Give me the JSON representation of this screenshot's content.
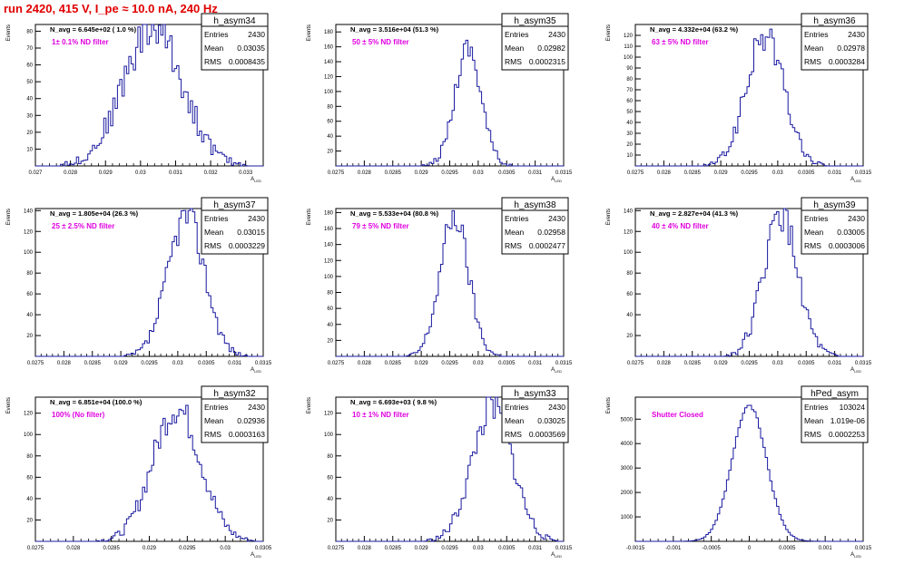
{
  "run_title": "run 2420,   415 V, I_pe ≈ 10.0 nA, 240 Hz",
  "colors": {
    "histogram": "#1a1aa0",
    "filter_label": "#e000e0",
    "run_title": "#e00000",
    "axis": "#000000",
    "background": "#ffffff"
  },
  "chart_data": [
    {
      "type": "bar",
      "name": "h_asym34",
      "stats": {
        "entries_label": "Entries",
        "entries": "2430",
        "mean_label": "Mean",
        "mean": "0.03035",
        "rms_label": "RMS",
        "rms": "0.0008435"
      },
      "navg": "N_avg = 6.645e+02 ( 1.0 %)",
      "filter": "1± 0.1% ND filter",
      "xlabel": "A_LED",
      "ylabel": "Events",
      "xlim": [
        0.027,
        0.0335
      ],
      "ylim": [
        0,
        84
      ],
      "xticks": [
        0.027,
        0.028,
        0.029,
        0.03,
        0.031,
        0.032,
        0.033
      ],
      "xtick_labels": [
        "0.027",
        "0.028",
        "0.029",
        "0.03",
        "0.031",
        "0.032",
        "0.033"
      ],
      "yticks": [
        10,
        20,
        30,
        40,
        50,
        60,
        70,
        80
      ],
      "peak": 82,
      "width_factor": 1.0,
      "seed": 34
    },
    {
      "type": "bar",
      "name": "h_asym35",
      "stats": {
        "entries_label": "Entries",
        "entries": "2430",
        "mean_label": "Mean",
        "mean": "0.02982",
        "rms_label": "RMS",
        "rms": "0.0002315"
      },
      "navg": "N_avg = 3.516e+04 (51.3 %)",
      "filter": "50 ± 5% ND filter",
      "xlabel": "A_LED",
      "ylabel": "Events",
      "xlim": [
        0.0275,
        0.0315
      ],
      "ylim": [
        0,
        190
      ],
      "xticks": [
        0.0275,
        0.028,
        0.0285,
        0.029,
        0.0295,
        0.03,
        0.0305,
        0.031,
        0.0315
      ],
      "xtick_labels": [
        "0.0275",
        "0.028",
        "0.0285",
        "0.029",
        "0.0295",
        "0.03",
        "0.0305",
        "0.031",
        "0.0315"
      ],
      "yticks": [
        20,
        40,
        60,
        80,
        100,
        120,
        140,
        160,
        180
      ],
      "peak": 160,
      "width_factor": 1.0,
      "seed": 35
    },
    {
      "type": "bar",
      "name": "h_asym36",
      "stats": {
        "entries_label": "Entries",
        "entries": "2430",
        "mean_label": "Mean",
        "mean": "0.02978",
        "rms_label": "RMS",
        "rms": "0.0003284"
      },
      "navg": "N_avg = 4.332e+04 (63.2 %)",
      "filter": "63 ± 5% ND filter",
      "xlabel": "A_LED",
      "ylabel": "Events",
      "xlim": [
        0.0275,
        0.0315
      ],
      "ylim": [
        0,
        130
      ],
      "xticks": [
        0.0275,
        0.028,
        0.0285,
        0.029,
        0.0295,
        0.03,
        0.0305,
        0.031,
        0.0315
      ],
      "xtick_labels": [
        "0.0275",
        "0.028",
        "0.0285",
        "0.029",
        "0.0295",
        "0.03",
        "0.0305",
        "0.031",
        "0.0315"
      ],
      "yticks": [
        10,
        20,
        30,
        40,
        50,
        60,
        70,
        80,
        90,
        100,
        110,
        120
      ],
      "peak": 120,
      "width_factor": 1.0,
      "seed": 36
    },
    {
      "type": "bar",
      "name": "h_asym37",
      "stats": {
        "entries_label": "Entries",
        "entries": "2430",
        "mean_label": "Mean",
        "mean": "0.03015",
        "rms_label": "RMS",
        "rms": "0.0003229"
      },
      "navg": "N_avg = 1.805e+04 (26.3 %)",
      "filter": "25 ± 2.5% ND filter",
      "xlabel": "A_LED",
      "ylabel": "Events",
      "xlim": [
        0.0275,
        0.0315
      ],
      "ylim": [
        0,
        142
      ],
      "xticks": [
        0.0275,
        0.028,
        0.0285,
        0.029,
        0.0295,
        0.03,
        0.0305,
        0.031,
        0.0315
      ],
      "xtick_labels": [
        "0.0275",
        "0.028",
        "0.0285",
        "0.029",
        "0.0295",
        "0.03",
        "0.0305",
        "0.031",
        "0.0315"
      ],
      "yticks": [
        20,
        40,
        60,
        80,
        100,
        120,
        140
      ],
      "peak": 135,
      "width_factor": 1.0,
      "seed": 37
    },
    {
      "type": "bar",
      "name": "h_asym38",
      "stats": {
        "entries_label": "Entries",
        "entries": "2430",
        "mean_label": "Mean",
        "mean": "0.02958",
        "rms_label": "RMS",
        "rms": "0.0002477"
      },
      "navg": "N_avg = 5.533e+04 (80.8 %)",
      "filter": "79 ± 5% ND filter",
      "xlabel": "A_LED",
      "ylabel": "Events",
      "xlim": [
        0.0275,
        0.0315
      ],
      "ylim": [
        0,
        185
      ],
      "xticks": [
        0.0275,
        0.028,
        0.0285,
        0.029,
        0.0295,
        0.03,
        0.0305,
        0.031,
        0.0315
      ],
      "xtick_labels": [
        "0.0275",
        "0.028",
        "0.0285",
        "0.029",
        "0.0295",
        "0.03",
        "0.0305",
        "0.031",
        "0.0315"
      ],
      "yticks": [
        20,
        40,
        60,
        80,
        100,
        120,
        140,
        160,
        180
      ],
      "peak": 175,
      "width_factor": 1.0,
      "seed": 38
    },
    {
      "type": "bar",
      "name": "h_asym39",
      "stats": {
        "entries_label": "Entries",
        "entries": "2430",
        "mean_label": "Mean",
        "mean": "0.03005",
        "rms_label": "RMS",
        "rms": "0.0003006"
      },
      "navg": "N_avg = 2.827e+04 (41.3 %)",
      "filter": "40 ± 4% ND filter",
      "xlabel": "A_LED",
      "ylabel": "Events",
      "xlim": [
        0.0275,
        0.0315
      ],
      "ylim": [
        0,
        142
      ],
      "xticks": [
        0.0275,
        0.028,
        0.0285,
        0.029,
        0.0295,
        0.03,
        0.0305,
        0.031,
        0.0315
      ],
      "xtick_labels": [
        "0.0275",
        "0.028",
        "0.0285",
        "0.029",
        "0.0295",
        "0.03",
        "0.0305",
        "0.031",
        "0.0315"
      ],
      "yticks": [
        20,
        40,
        60,
        80,
        100,
        120,
        140
      ],
      "peak": 135,
      "width_factor": 1.0,
      "seed": 39
    },
    {
      "type": "bar",
      "name": "h_asym32",
      "stats": {
        "entries_label": "Entries",
        "entries": "2430",
        "mean_label": "Mean",
        "mean": "0.02936",
        "rms_label": "RMS",
        "rms": "0.0003163"
      },
      "navg": "N_avg = 6.851e+04 (100.0 %)",
      "filter": "100% (No filter)",
      "xlabel": "A_LED",
      "ylabel": "Events",
      "xlim": [
        0.0275,
        0.0305
      ],
      "ylim": [
        0,
        135
      ],
      "xticks": [
        0.0275,
        0.028,
        0.0285,
        0.029,
        0.0295,
        0.03,
        0.0305
      ],
      "xtick_labels": [
        "0.0275",
        "0.028",
        "0.0285",
        "0.029",
        "0.0295",
        "0.03",
        "0.0305"
      ],
      "yticks": [
        20,
        40,
        60,
        80,
        100,
        120
      ],
      "peak": 125,
      "width_factor": 1.0,
      "seed": 32
    },
    {
      "type": "bar",
      "name": "h_asym33",
      "stats": {
        "entries_label": "Entries",
        "entries": "2430",
        "mean_label": "Mean",
        "mean": "0.03025",
        "rms_label": "RMS",
        "rms": "0.0003569"
      },
      "navg": "N_avg = 6.693e+03 ( 9.8 %)",
      "filter": "10 ± 1% ND filter",
      "xlabel": "A_LED",
      "ylabel": "Events",
      "xlim": [
        0.0275,
        0.0315
      ],
      "ylim": [
        0,
        135
      ],
      "xticks": [
        0.0275,
        0.028,
        0.0285,
        0.029,
        0.0295,
        0.03,
        0.0305,
        0.031,
        0.0315
      ],
      "xtick_labels": [
        "0.0275",
        "0.028",
        "0.0285",
        "0.029",
        "0.0295",
        "0.03",
        "0.0305",
        "0.031",
        "0.0315"
      ],
      "yticks": [
        20,
        40,
        60,
        80,
        100,
        120
      ],
      "peak": 125,
      "width_factor": 1.0,
      "seed": 33
    },
    {
      "type": "bar",
      "name": "hPed_asym",
      "stats": {
        "entries_label": "Entries",
        "entries": "103024",
        "mean_label": "Mean",
        "mean": "1.019e-06",
        "rms_label": "RMS",
        "rms": "0.0002253"
      },
      "navg": "",
      "filter": "Shutter Closed",
      "xlabel": "A_LED",
      "ylabel": "Events",
      "xlim": [
        -0.0015,
        0.0015
      ],
      "ylim": [
        0,
        5900
      ],
      "xticks": [
        -0.0015,
        -0.001,
        -0.0005,
        0,
        0.0005,
        0.001,
        0.0015
      ],
      "xtick_labels": [
        "-0.0015",
        "-0.001",
        "-0.0005",
        "0",
        "0.0005",
        "0.001",
        "0.0015"
      ],
      "yticks": [
        1000,
        2000,
        3000,
        4000,
        5000
      ],
      "peak": 5550,
      "width_factor": 1.0,
      "seed": 99
    }
  ]
}
